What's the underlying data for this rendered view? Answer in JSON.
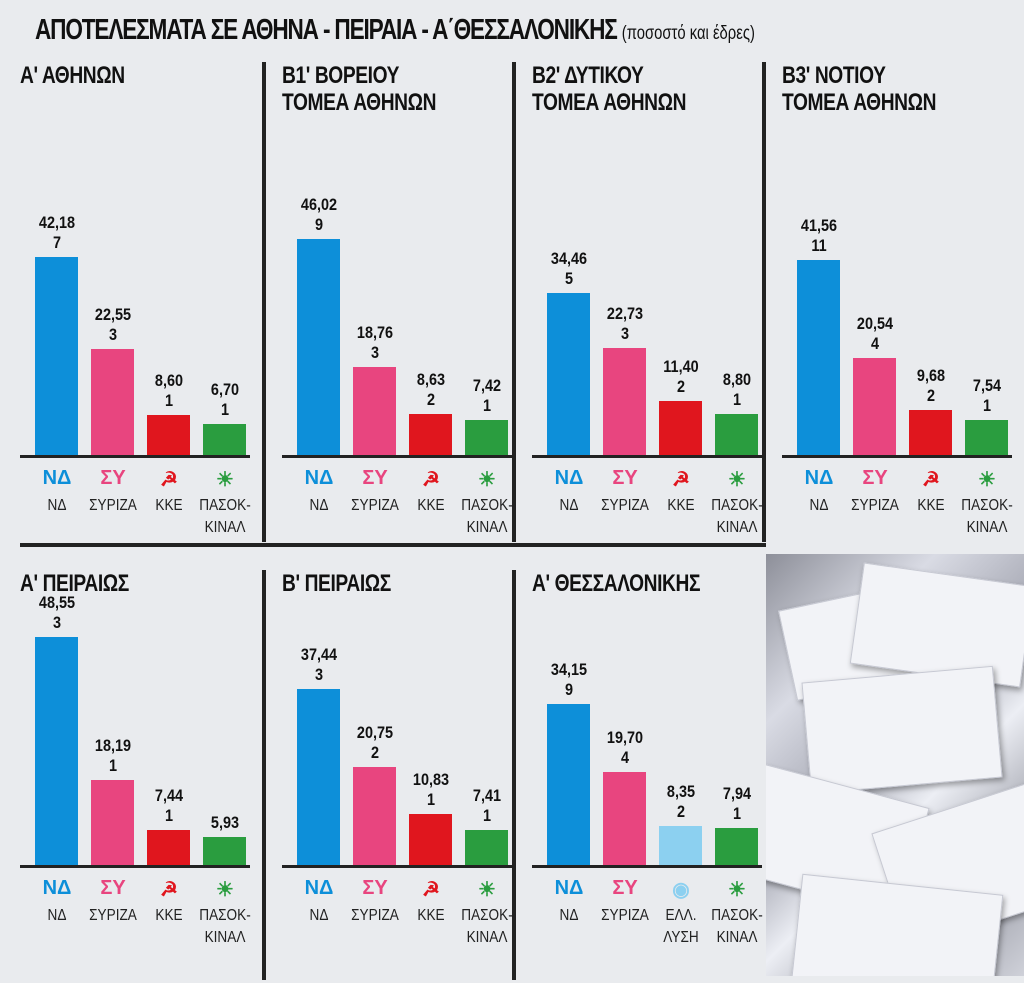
{
  "title": "ΑΠΟΤΕΛΕΣΜΑΤΑ ΣΕ ΑΘΗΝΑ - ΠΕΙΡΑΙΑ - Α΄ΘΕΣΣΑΛΟΝΙΚΗΣ",
  "subtitle": "(ποσοστό και έδρες)",
  "colors": {
    "ΝΔ": "#0d8fd9",
    "ΣΥΡΙΖΑ": "#e8457f",
    "ΚΚΕ": "#e0161e",
    "ΠΑΣΟΚ-ΚΙΝΑΛ": "#2a9d3f",
    "ΕΛΛ. ΛΥΣΗ": "#8cd0f0"
  },
  "chart_data": [
    {
      "type": "bar",
      "title": "Α' ΑΘΗΝΩΝ",
      "categories": [
        "ΝΔ",
        "ΣΥΡΙΖΑ",
        "ΚΚΕ",
        "ΠΑΣΟΚ-ΚΙΝΑΛ"
      ],
      "labels": [
        "ΝΔ",
        "ΣΥΡΙΖΑ",
        "ΚΚΕ",
        "ΠΑΣΟΚ-\nΚΙΝΑΛ"
      ],
      "values": [
        42.18,
        22.55,
        8.6,
        6.7
      ],
      "value_labels": [
        "42,18",
        "22,55",
        "8,60",
        "6,70"
      ],
      "seats": [
        "7",
        "3",
        "1",
        "1"
      ]
    },
    {
      "type": "bar",
      "title": "Β1' ΒΟΡΕΙΟΥ\nΤΟΜΕΑ ΑΘΗΝΩΝ",
      "categories": [
        "ΝΔ",
        "ΣΥΡΙΖΑ",
        "ΚΚΕ",
        "ΠΑΣΟΚ-ΚΙΝΑΛ"
      ],
      "labels": [
        "ΝΔ",
        "ΣΥΡΙΖΑ",
        "ΚΚΕ",
        "ΠΑΣΟΚ-\nΚΙΝΑΛ"
      ],
      "values": [
        46.02,
        18.76,
        8.63,
        7.42
      ],
      "value_labels": [
        "46,02",
        "18,76",
        "8,63",
        "7,42"
      ],
      "seats": [
        "9",
        "3",
        "2",
        "1"
      ]
    },
    {
      "type": "bar",
      "title": "Β2' ΔΥΤΙΚΟΥ\nΤΟΜΕΑ ΑΘΗΝΩΝ",
      "categories": [
        "ΝΔ",
        "ΣΥΡΙΖΑ",
        "ΚΚΕ",
        "ΠΑΣΟΚ-ΚΙΝΑΛ"
      ],
      "labels": [
        "ΝΔ",
        "ΣΥΡΙΖΑ",
        "ΚΚΕ",
        "ΠΑΣΟΚ-\nΚΙΝΑΛ"
      ],
      "values": [
        34.46,
        22.73,
        11.4,
        8.8
      ],
      "value_labels": [
        "34,46",
        "22,73",
        "11,40",
        "8,80"
      ],
      "seats": [
        "5",
        "3",
        "2",
        "1"
      ]
    },
    {
      "type": "bar",
      "title": "Β3' ΝΟΤΙΟΥ\nΤΟΜΕΑ ΑΘΗΝΩΝ",
      "categories": [
        "ΝΔ",
        "ΣΥΡΙΖΑ",
        "ΚΚΕ",
        "ΠΑΣΟΚ-ΚΙΝΑΛ"
      ],
      "labels": [
        "ΝΔ",
        "ΣΥΡΙΖΑ",
        "ΚΚΕ",
        "ΠΑΣΟΚ-\nΚΙΝΑΛ"
      ],
      "values": [
        41.56,
        20.54,
        9.68,
        7.54
      ],
      "value_labels": [
        "41,56",
        "20,54",
        "9,68",
        "7,54"
      ],
      "seats": [
        "11",
        "4",
        "2",
        "1"
      ]
    },
    {
      "type": "bar",
      "title": "Α' ΠΕΙΡΑΙΩΣ",
      "categories": [
        "ΝΔ",
        "ΣΥΡΙΖΑ",
        "ΚΚΕ",
        "ΠΑΣΟΚ-ΚΙΝΑΛ"
      ],
      "labels": [
        "ΝΔ",
        "ΣΥΡΙΖΑ",
        "ΚΚΕ",
        "ΠΑΣΟΚ-\nΚΙΝΑΛ"
      ],
      "values": [
        48.55,
        18.19,
        7.44,
        5.93
      ],
      "value_labels": [
        "48,55",
        "18,19",
        "7,44",
        "5,93"
      ],
      "seats": [
        "3",
        "1",
        "1",
        ""
      ]
    },
    {
      "type": "bar",
      "title": "Β' ΠΕΙΡΑΙΩΣ",
      "categories": [
        "ΝΔ",
        "ΣΥΡΙΖΑ",
        "ΚΚΕ",
        "ΠΑΣΟΚ-ΚΙΝΑΛ"
      ],
      "labels": [
        "ΝΔ",
        "ΣΥΡΙΖΑ",
        "ΚΚΕ",
        "ΠΑΣΟΚ-\nΚΙΝΑΛ"
      ],
      "values": [
        37.44,
        20.75,
        10.83,
        7.41
      ],
      "value_labels": [
        "37,44",
        "20,75",
        "10,83",
        "7,41"
      ],
      "seats": [
        "3",
        "2",
        "1",
        "1"
      ]
    },
    {
      "type": "bar",
      "title": "Α' ΘΕΣΣΑΛΟΝΙΚΗΣ",
      "categories": [
        "ΝΔ",
        "ΣΥΡΙΖΑ",
        "ΕΛΛ. ΛΥΣΗ",
        "ΠΑΣΟΚ-ΚΙΝΑΛ"
      ],
      "labels": [
        "ΝΔ",
        "ΣΥΡΙΖΑ",
        "ΕΛΛ.\nΛΥΣΗ",
        "ΠΑΣΟΚ-\nΚΙΝΑΛ"
      ],
      "values": [
        34.15,
        19.7,
        8.35,
        7.94
      ],
      "value_labels": [
        "34,15",
        "19,70",
        "8,35",
        "7,94"
      ],
      "seats": [
        "9",
        "4",
        "2",
        "1"
      ]
    }
  ]
}
